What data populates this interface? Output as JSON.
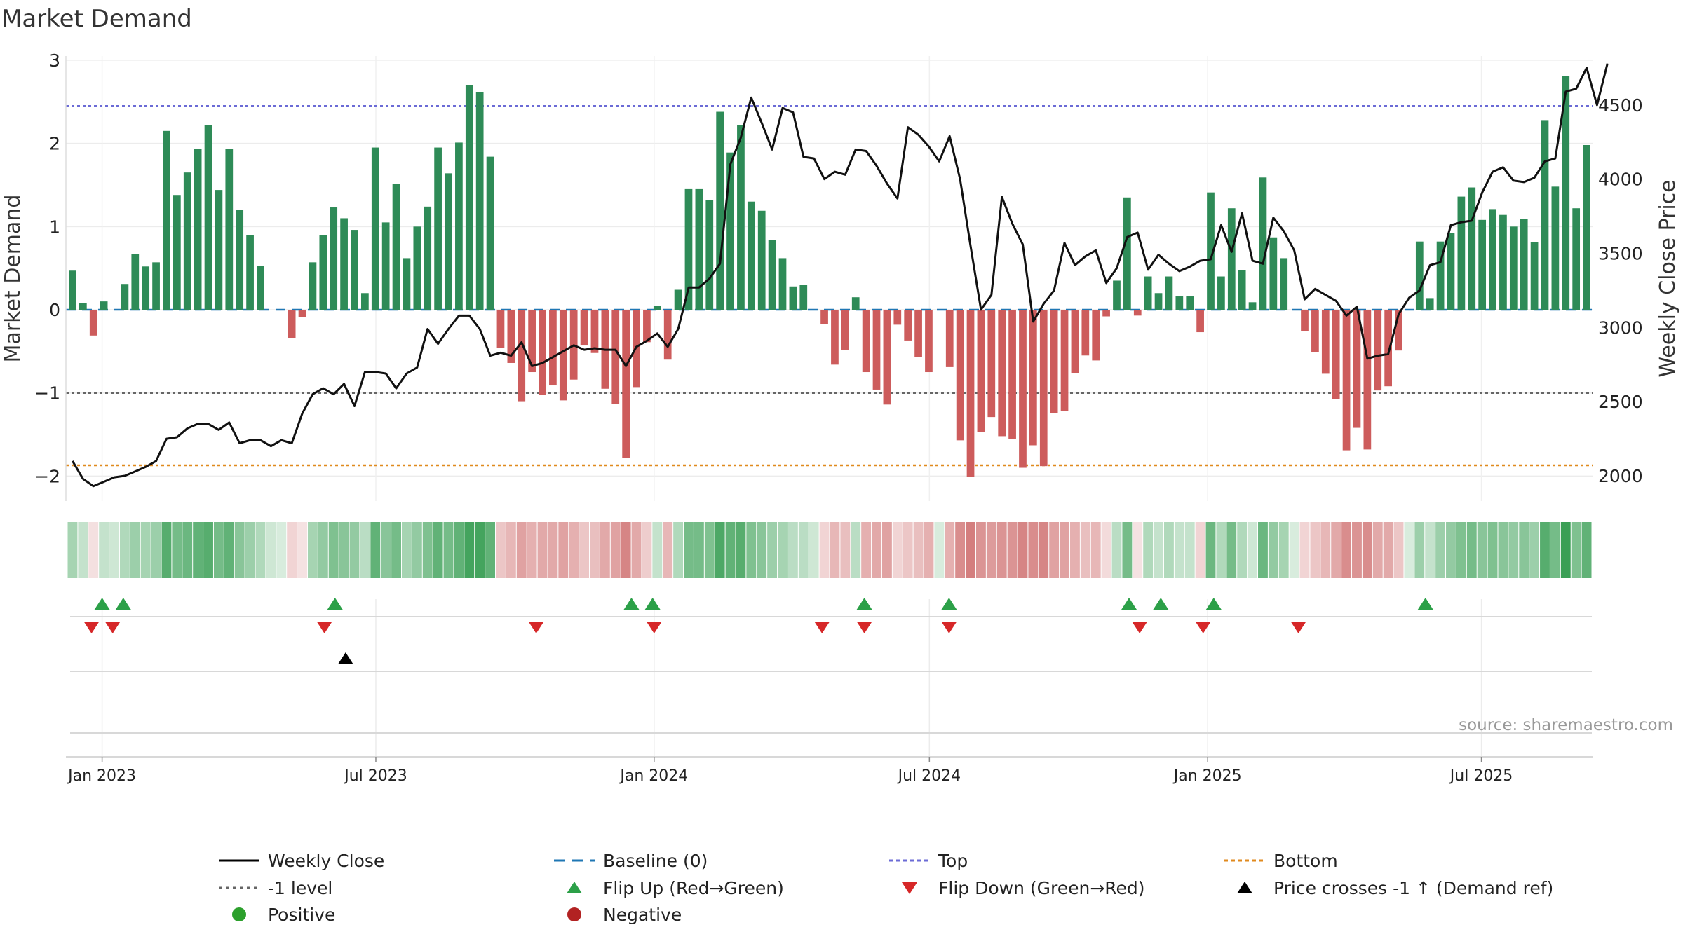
{
  "chart_data": {
    "type": "bar",
    "title": "Market Demand",
    "ylabel_left": "Market Demand",
    "ylabel_right": "Weekly Close Price",
    "source": "source: sharemaestro.com",
    "ylim_left": [
      -2.3,
      3.05
    ],
    "yticks_left": [
      3,
      2,
      1,
      0,
      -1,
      -2
    ],
    "yticks_left_labels": [
      "3",
      "2",
      "1",
      "0",
      "−1",
      "−2"
    ],
    "ylim_right": [
      1830,
      4830
    ],
    "yticks_right": [
      4500,
      4000,
      3500,
      3000,
      2500,
      2000
    ],
    "yticks_right_labels": [
      "4500",
      "4000",
      "3500",
      "3000",
      "2500",
      "2000"
    ],
    "x_start": "2022-12-09",
    "x_end": "2025-09-12",
    "xtick_labels": [
      "Jan 2023",
      "Jul 2023",
      "Jan 2024",
      "Jul 2024",
      "Jan 2025",
      "Jul 2025"
    ],
    "xtick_dates": [
      "2023-01-01",
      "2023-07-01",
      "2024-01-01",
      "2024-07-01",
      "2025-01-01",
      "2025-07-01"
    ],
    "reference_lines": {
      "top": 2.45,
      "minus_one": -1,
      "bottom": -1.87,
      "baseline": 0
    },
    "demand": [
      0.47,
      0.08,
      -0.31,
      0.1,
      0,
      0.31,
      0.67,
      0.52,
      0.57,
      2.15,
      1.38,
      1.65,
      1.93,
      2.22,
      1.44,
      1.93,
      1.2,
      0.9,
      0.53,
      0,
      0,
      -0.34,
      -0.09,
      0.57,
      0.9,
      1.23,
      1.1,
      0.96,
      0.2,
      1.95,
      1.05,
      1.51,
      0.62,
      1.0,
      1.24,
      1.95,
      1.64,
      2.01,
      2.7,
      2.62,
      1.84,
      -0.46,
      -0.64,
      -1.1,
      -0.75,
      -1.02,
      -0.91,
      -1.09,
      -0.84,
      -0.43,
      -0.52,
      -0.95,
      -1.13,
      -1.78,
      -0.93,
      -0.39,
      0.05,
      -0.6,
      0.24,
      1.45,
      1.45,
      1.32,
      2.38,
      1.89,
      2.22,
      1.3,
      1.19,
      0.84,
      0.62,
      0.28,
      0.3,
      0,
      -0.17,
      -0.66,
      -0.48,
      0.15,
      -0.75,
      -0.96,
      -1.14,
      -0.18,
      -0.37,
      -0.57,
      -0.75,
      0,
      -0.69,
      -1.57,
      -2.01,
      -1.47,
      -1.29,
      -1.52,
      -1.55,
      -1.9,
      -1.63,
      -1.88,
      -1.24,
      -1.22,
      -0.76,
      -0.55,
      -0.61,
      -0.08,
      0.35,
      1.35,
      -0.07,
      0.4,
      0.2,
      0.4,
      0.16,
      0.16,
      -0.27,
      1.41,
      0.4,
      1.22,
      0.48,
      0.09,
      1.59,
      0.87,
      0.62,
      0,
      -0.26,
      -0.51,
      -0.77,
      -1.07,
      -1.69,
      -1.42,
      -1.68,
      -0.97,
      -0.92,
      -0.49,
      0,
      0.82,
      0.14,
      0.82,
      0.92,
      1.36,
      1.47,
      1.08,
      1.21,
      1.14,
      1.0,
      1.09,
      0.81,
      2.28,
      1.48,
      2.81,
      1.22,
      1.98
    ],
    "price": [
      2100,
      1980,
      1930,
      1960,
      1990,
      2000,
      2030,
      2060,
      2100,
      2250,
      2260,
      2320,
      2350,
      2350,
      2310,
      2360,
      2220,
      2240,
      2240,
      2200,
      2240,
      2220,
      2420,
      2550,
      2590,
      2550,
      2620,
      2470,
      2700,
      2700,
      2690,
      2590,
      2690,
      2730,
      2990,
      2890,
      2990,
      3080,
      3080,
      2990,
      2810,
      2830,
      2810,
      2900,
      2740,
      2760,
      2800,
      2840,
      2880,
      2850,
      2860,
      2850,
      2850,
      2740,
      2870,
      2910,
      2960,
      2870,
      2990,
      3270,
      3270,
      3330,
      3430,
      4100,
      4280,
      4550,
      4380,
      4200,
      4480,
      4450,
      4150,
      4140,
      4000,
      4050,
      4030,
      4200,
      4190,
      4090,
      3970,
      3870,
      4350,
      4300,
      4220,
      4120,
      4290,
      4000,
      3550,
      3120,
      3220,
      3880,
      3700,
      3560,
      3040,
      3160,
      3250,
      3570,
      3420,
      3480,
      3520,
      3300,
      3400,
      3610,
      3640,
      3390,
      3490,
      3430,
      3380,
      3410,
      3450,
      3460,
      3690,
      3510,
      3770,
      3450,
      3430,
      3740,
      3650,
      3520,
      3190,
      3260,
      3220,
      3180,
      3080,
      3140,
      2790,
      2810,
      2820,
      3090,
      3200,
      3250,
      3420,
      3440,
      3690,
      3710,
      3720,
      3910,
      4050,
      4080,
      3990,
      3980,
      4010,
      4120,
      4140,
      4590,
      4610,
      4750,
      4500,
      4780
    ],
    "heat_strength": [
      0.45,
      0.3,
      0.22,
      0.3,
      0.25,
      0.4,
      0.5,
      0.45,
      0.5,
      0.85,
      0.7,
      0.75,
      0.8,
      0.85,
      0.7,
      0.8,
      0.6,
      0.5,
      0.4,
      0.25,
      0.2,
      0.3,
      0.2,
      0.45,
      0.55,
      0.65,
      0.6,
      0.55,
      0.35,
      0.8,
      0.6,
      0.7,
      0.45,
      0.55,
      0.65,
      0.8,
      0.7,
      0.8,
      0.95,
      0.95,
      0.8,
      0.4,
      0.5,
      0.65,
      0.55,
      0.6,
      0.6,
      0.65,
      0.55,
      0.4,
      0.45,
      0.6,
      0.65,
      0.85,
      0.6,
      0.35,
      0.3,
      0.5,
      0.4,
      0.7,
      0.7,
      0.65,
      0.9,
      0.8,
      0.85,
      0.65,
      0.6,
      0.5,
      0.45,
      0.35,
      0.35,
      0.25,
      0.3,
      0.5,
      0.45,
      0.35,
      0.55,
      0.6,
      0.65,
      0.3,
      0.4,
      0.45,
      0.55,
      0.2,
      0.55,
      0.8,
      0.9,
      0.75,
      0.7,
      0.75,
      0.75,
      0.85,
      0.8,
      0.85,
      0.65,
      0.65,
      0.55,
      0.45,
      0.5,
      0.25,
      0.35,
      0.7,
      0.2,
      0.4,
      0.3,
      0.4,
      0.3,
      0.3,
      0.3,
      0.75,
      0.4,
      0.7,
      0.4,
      0.25,
      0.75,
      0.55,
      0.45,
      0.2,
      0.3,
      0.4,
      0.5,
      0.6,
      0.8,
      0.75,
      0.8,
      0.6,
      0.6,
      0.4,
      0.2,
      0.5,
      0.3,
      0.5,
      0.55,
      0.65,
      0.7,
      0.6,
      0.65,
      0.6,
      0.55,
      0.6,
      0.5,
      0.85,
      0.7,
      1.0,
      0.65,
      0.8
    ],
    "markers": {
      "flip_up": [
        "2023-01-01",
        "2023-01-15",
        "2023-06-04",
        "2023-12-17",
        "2023-12-31",
        "2024-05-19",
        "2024-07-14",
        "2024-11-10",
        "2024-12-01",
        "2025-01-05",
        "2025-05-25"
      ],
      "flip_down": [
        "2022-12-25",
        "2023-01-08",
        "2023-05-28",
        "2023-10-15",
        "2024-01-01",
        "2024-04-21",
        "2024-05-19",
        "2024-07-14",
        "2024-11-17",
        "2024-12-29",
        "2025-03-02"
      ],
      "price_cross_up": [
        "2023-06-11"
      ]
    },
    "legend": {
      "position": "bottom",
      "items": [
        {
          "label": "Weekly Close",
          "symbol": "line-solid",
          "color": "#000000"
        },
        {
          "label": "Baseline (0)",
          "symbol": "line-dashed",
          "color": "#1f77b4"
        },
        {
          "label": "Top",
          "symbol": "line-dotted",
          "color": "#6b6bd6"
        },
        {
          "label": "Bottom",
          "symbol": "line-dotted",
          "color": "#e08a1e"
        },
        {
          "label": "-1 level",
          "symbol": "line-dotted",
          "color": "#666666"
        },
        {
          "label": "Flip Up (Red→Green)",
          "symbol": "triangle-up",
          "color": "#2ca048"
        },
        {
          "label": "Flip Down (Green→Red)",
          "symbol": "triangle-down",
          "color": "#d62728"
        },
        {
          "label": "Price crosses -1 ↑ (Demand ref)",
          "symbol": "triangle-up",
          "color": "#000000"
        },
        {
          "label": "Positive",
          "symbol": "circle",
          "color": "#2ca02c"
        },
        {
          "label": "Negative",
          "symbol": "circle",
          "color": "#b22222"
        }
      ]
    },
    "colors": {
      "positive_bar": "#2e8b57",
      "negative_bar": "#cd5c5c",
      "heat_positive": "#3a9f55",
      "heat_negative": "#cf7070",
      "price_line": "#111111"
    }
  }
}
